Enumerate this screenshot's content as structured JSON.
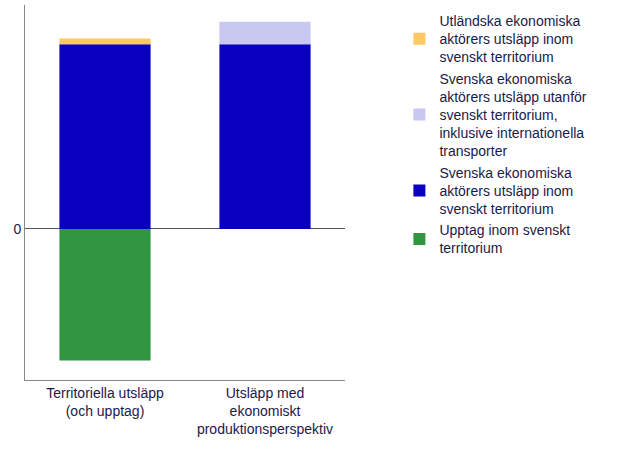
{
  "chart_data": {
    "type": "bar",
    "stacked": true,
    "categories": [
      "Territoriella utsläpp\n(och upptag)",
      "Utsläpp med\nekonomiskt\nproduktionsperspektiv"
    ],
    "series": [
      {
        "name": "Svenska ekonomiska\naktörers utsläpp inom\nsvenskt territorium",
        "color": "#0a00c0",
        "values": [
          33,
          33
        ]
      },
      {
        "name": "Utländska ekonomiska\naktörers utsläpp inom\nsvenskt territorium",
        "color": "#ffc864",
        "values": [
          1,
          null
        ]
      },
      {
        "name": "Svenska ekonomiska\naktörers utsläpp utanför\nsvenskt territorium,\ninklusive internationella\ntransporter",
        "color": "#c8c8f0",
        "values": [
          null,
          4
        ]
      },
      {
        "name": "Upptag inom svenskt\nterritorium",
        "color": "#329640",
        "values": [
          -23.5,
          null
        ]
      }
    ],
    "ylim": [
      -27,
      40
    ],
    "yticks": [
      0
    ],
    "grid": true,
    "legend": "right"
  }
}
